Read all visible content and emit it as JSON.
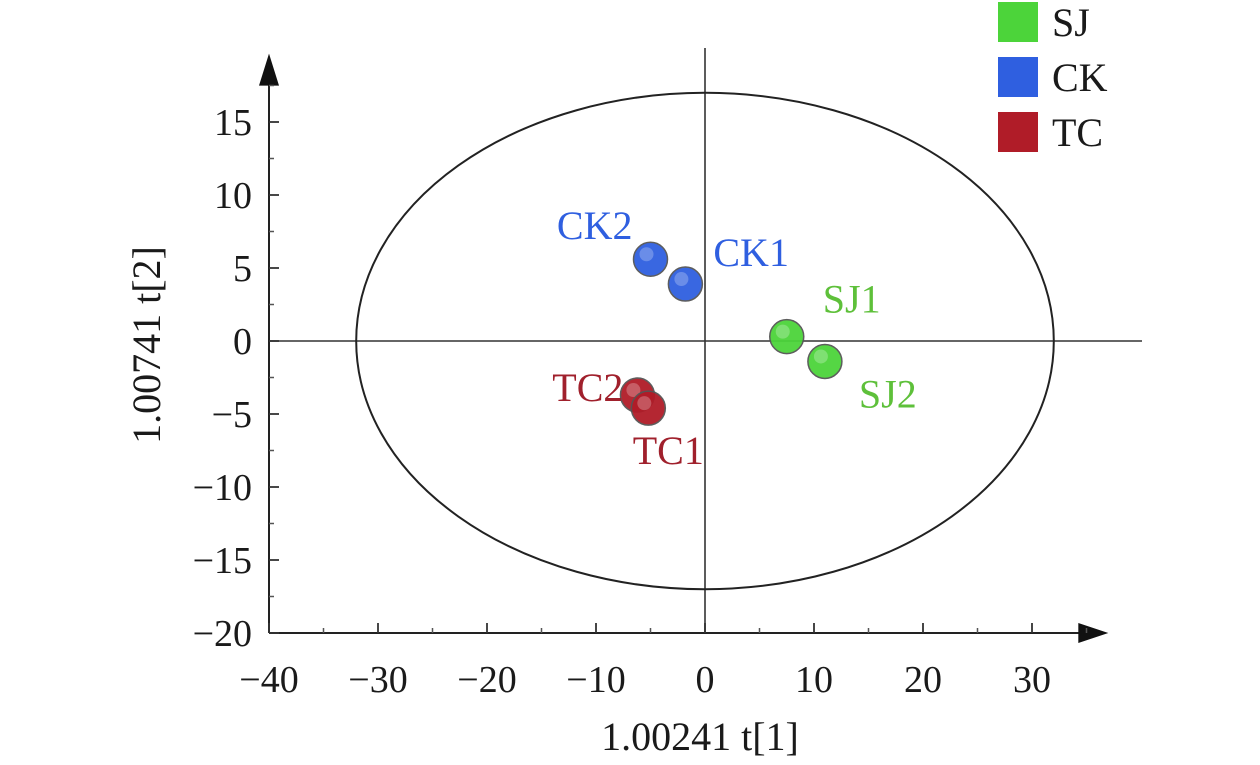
{
  "chart_data": {
    "type": "scatter",
    "xlabel": "1.00241 t[1]",
    "ylabel": "1.00741 t[2]",
    "xlim": [
      -40,
      37
    ],
    "ylim": [
      -20,
      19
    ],
    "x_ticks": [
      -40,
      -30,
      -20,
      -10,
      0,
      10,
      20,
      30
    ],
    "y_ticks": [
      -20,
      -15,
      -10,
      -5,
      0,
      5,
      10,
      15
    ],
    "x_tick_labels": [
      "−40",
      "−30",
      "−20",
      "−10",
      "0",
      "10",
      "20",
      "30"
    ],
    "y_tick_labels": [
      "−20",
      "−15",
      "−10",
      "−5",
      "0",
      "5",
      "10",
      "15"
    ],
    "ellipse": {
      "cx": 0,
      "cy": 0,
      "rx": 32,
      "ry": 17
    },
    "legend_position": "top-right",
    "series": [
      {
        "name": "SJ",
        "color": "#4cd43a",
        "label_color": "#5ec03a",
        "points": [
          {
            "label": "SJ1",
            "x": 7.5,
            "y": 0.3
          },
          {
            "label": "SJ2",
            "x": 11,
            "y": -1.4
          }
        ]
      },
      {
        "name": "CK",
        "color": "#2f5fe0",
        "label_color": "#2f5fe0",
        "points": [
          {
            "label": "CK1",
            "x": -1.8,
            "y": 3.9
          },
          {
            "label": "CK2",
            "x": -5,
            "y": 5.6
          }
        ]
      },
      {
        "name": "TC",
        "color": "#b01c28",
        "label_color": "#a0202c",
        "points": [
          {
            "label": "TC1",
            "x": -5.2,
            "y": -4.6
          },
          {
            "label": "TC2",
            "x": -6.2,
            "y": -3.7
          }
        ]
      }
    ]
  }
}
